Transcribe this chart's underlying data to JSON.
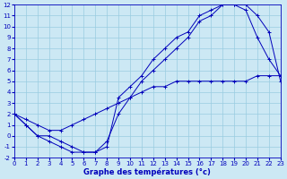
{
  "xlabel": "Graphe des températures (°c)",
  "bg_color": "#cce8f4",
  "grid_color": "#99cce0",
  "line_color": "#0000bb",
  "xlim": [
    0,
    23
  ],
  "ylim": [
    -2,
    12
  ],
  "xticks": [
    0,
    1,
    2,
    3,
    4,
    5,
    6,
    7,
    8,
    9,
    10,
    11,
    12,
    13,
    14,
    15,
    16,
    17,
    18,
    19,
    20,
    21,
    22,
    23
  ],
  "yticks": [
    -2,
    -1,
    0,
    1,
    2,
    3,
    4,
    5,
    6,
    7,
    8,
    9,
    10,
    11,
    12
  ],
  "curve1_x": [
    0,
    1,
    2,
    3,
    4,
    5,
    6,
    7,
    8,
    9,
    10,
    11,
    12,
    13,
    14,
    15,
    16,
    17,
    18,
    19,
    20,
    21,
    22,
    23
  ],
  "curve1_y": [
    2,
    1,
    0,
    -0.5,
    -1,
    -1.5,
    -1.5,
    -1.5,
    -1,
    3.5,
    4.5,
    5.5,
    7,
    8,
    9,
    9.5,
    11,
    11.5,
    12,
    12,
    12,
    11,
    9.5,
    5
  ],
  "curve2_x": [
    0,
    1,
    2,
    3,
    4,
    5,
    6,
    7,
    8,
    9,
    10,
    11,
    12,
    13,
    14,
    15,
    16,
    17,
    18,
    19,
    20,
    21,
    22,
    23
  ],
  "curve2_y": [
    2,
    1,
    0,
    0,
    -0.5,
    -1,
    -1.5,
    -1.5,
    -0.5,
    2,
    3.5,
    5,
    6,
    7,
    8,
    9,
    10.5,
    11,
    12,
    12,
    11.5,
    9,
    7,
    5.5
  ],
  "curve3_x": [
    0,
    1,
    2,
    3,
    4,
    5,
    6,
    7,
    8,
    9,
    10,
    11,
    12,
    13,
    14,
    15,
    16,
    17,
    18,
    19,
    20,
    21,
    22,
    23
  ],
  "curve3_y": [
    2,
    1.5,
    1,
    0.5,
    0.5,
    1,
    1.5,
    2,
    2.5,
    3,
    3.5,
    4,
    4.5,
    4.5,
    5,
    5,
    5,
    5,
    5,
    5,
    5,
    5.5,
    5.5,
    5.5
  ],
  "tick_fontsize": 5,
  "xlabel_fontsize": 6
}
